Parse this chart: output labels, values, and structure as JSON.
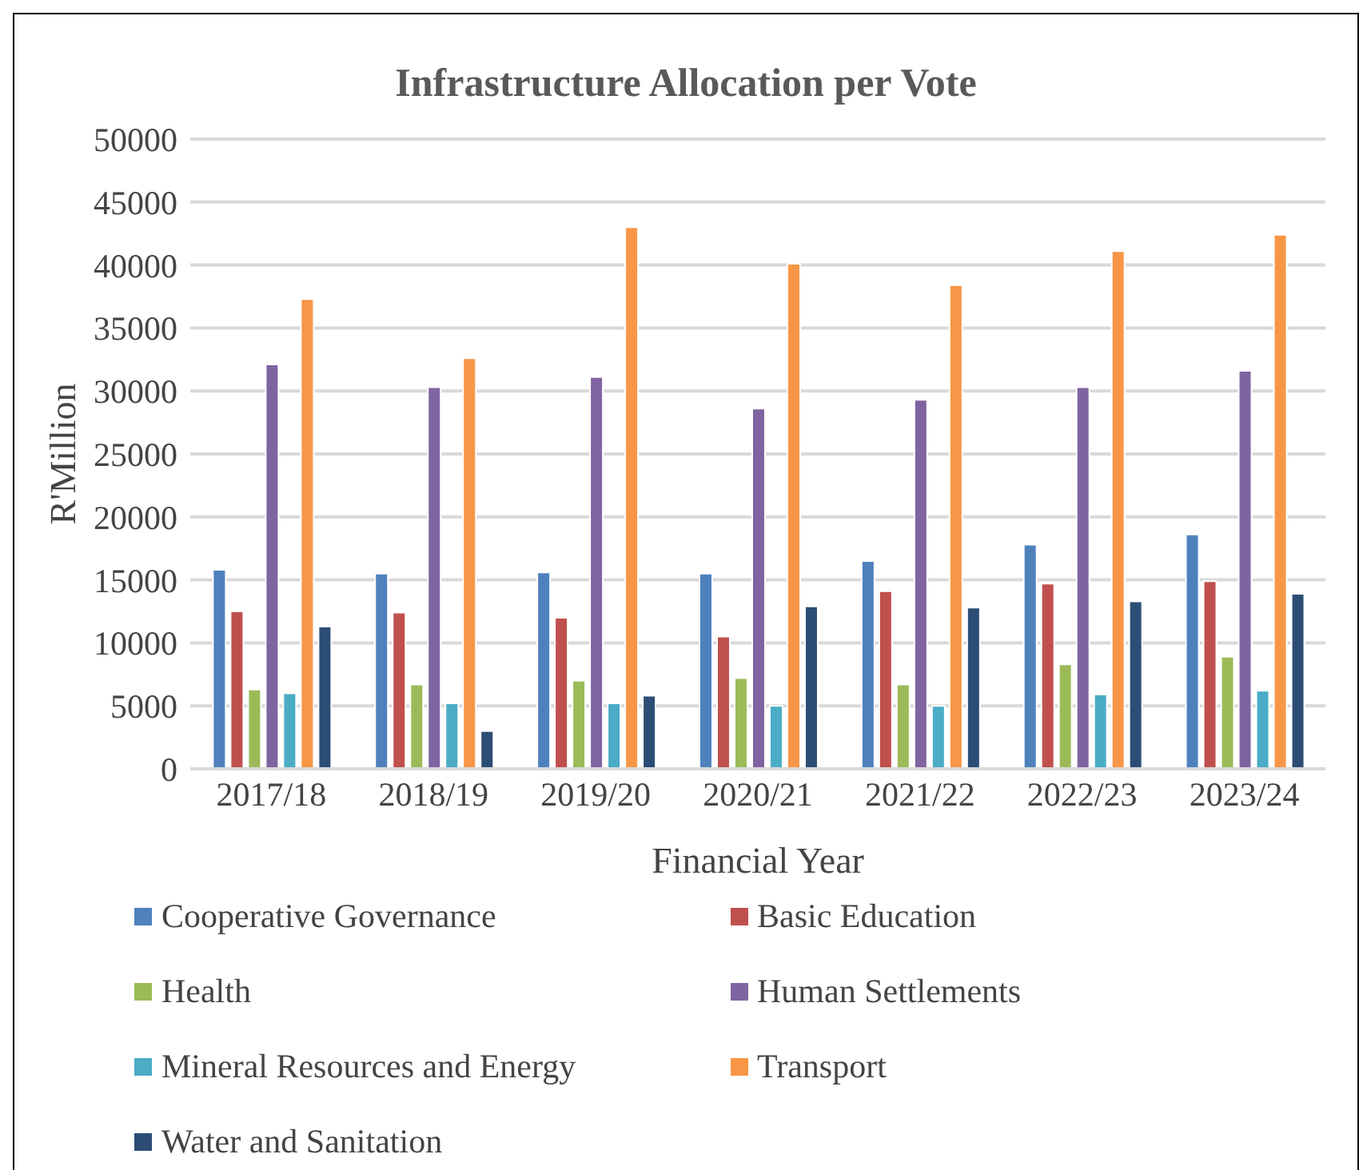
{
  "chart_data": {
    "type": "bar",
    "title": "Infrastructure Allocation per Vote",
    "xlabel": "Financial Year",
    "ylabel": "R'Million",
    "categories": [
      "2017/18",
      "2018/19",
      "2019/20",
      "2020/21",
      "2021/22",
      "2022/23",
      "2023/24"
    ],
    "series": [
      {
        "name": "Cooperative Governance",
        "color": "#4f81bd",
        "values": [
          15800,
          15500,
          15600,
          15500,
          16500,
          17800,
          18600
        ]
      },
      {
        "name": "Basic Education",
        "color": "#c0504d",
        "values": [
          12500,
          12400,
          12000,
          10500,
          14100,
          14700,
          14900
        ]
      },
      {
        "name": "Health",
        "color": "#9bbb59",
        "values": [
          6300,
          6700,
          7000,
          7200,
          6700,
          8300,
          8900
        ]
      },
      {
        "name": "Human Settlements",
        "color": "#8064a2",
        "values": [
          32100,
          30300,
          31100,
          28600,
          29300,
          30300,
          31600
        ]
      },
      {
        "name": "Mineral Resources and Energy",
        "color": "#4bacc6",
        "values": [
          6000,
          5200,
          5200,
          5000,
          5000,
          5900,
          6200
        ]
      },
      {
        "name": "Transport",
        "color": "#f79646",
        "values": [
          37300,
          32600,
          43000,
          40100,
          38400,
          41100,
          42400
        ]
      },
      {
        "name": "Water and Sanitation",
        "color": "#2c4d75",
        "values": [
          11300,
          3000,
          5800,
          12900,
          12800,
          13300,
          13900
        ]
      }
    ],
    "ylim": [
      0,
      50000
    ],
    "yticks": [
      0,
      5000,
      10000,
      15000,
      20000,
      25000,
      30000,
      35000,
      40000,
      45000,
      50000
    ],
    "grid": "y",
    "legend": "bottom"
  }
}
